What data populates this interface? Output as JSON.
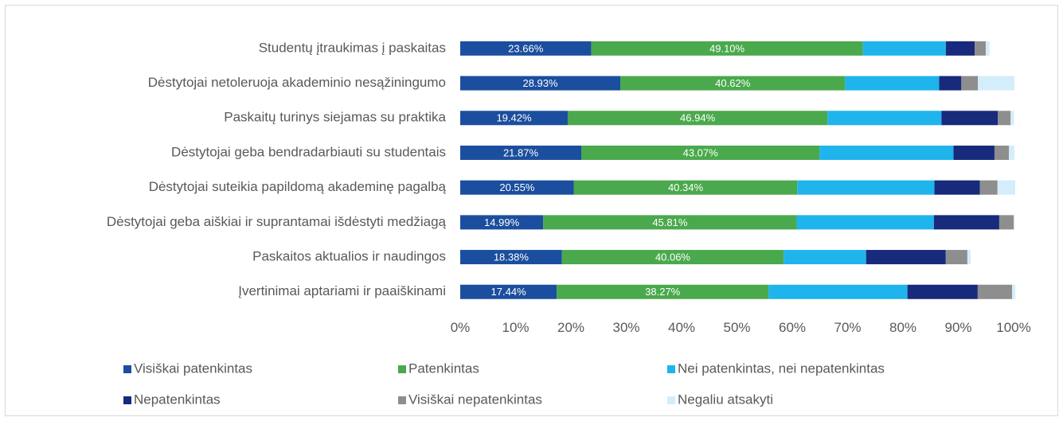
{
  "chart_data": {
    "type": "stacked_barh",
    "categories": [
      "Studentų įtraukimas į paskaitas",
      "Dėstytojai netoleruoja akademinio nesąžiningumo",
      "Paskaitų turinys siejamas su praktika",
      "Dėstytojai geba bendradarbiauti su studentais",
      "Dėstytojai suteikia papildomą akademinę pagalbą",
      "Dėstytojai geba aiškiai ir suprantamai išdėstyti medžiagą",
      "Paskaitos aktualios ir naudingos",
      "Įvertinimai aptariami ir paaiškinami"
    ],
    "series": [
      {
        "name": "Visiškai patenkintas",
        "color": "#1b4e9e",
        "values": [
          23.66,
          28.93,
          19.42,
          21.87,
          20.55,
          14.99,
          18.38,
          17.44
        ],
        "value_labels": [
          "23.66%",
          "28.93%",
          "19.42%",
          "21.87%",
          "20.55%",
          "14.99%",
          "18.38%",
          "17.44%"
        ]
      },
      {
        "name": "Patenkintas",
        "color": "#4aa94c",
        "values": [
          49.1,
          40.62,
          46.94,
          43.07,
          40.34,
          45.81,
          40.06,
          38.27
        ],
        "value_labels": [
          "49.10%",
          "40.62%",
          "46.94%",
          "43.07%",
          "40.34%",
          "45.81%",
          "40.06%",
          "38.27%"
        ]
      },
      {
        "name": "Nei patenkintas, nei nepatenkintas",
        "color": "#1fb4ec",
        "values": [
          15.0,
          17.0,
          20.6,
          24.2,
          24.8,
          24.8,
          14.9,
          25.1
        ]
      },
      {
        "name": "Nepatenkintas",
        "color": "#172a7c",
        "values": [
          5.2,
          4.0,
          10.2,
          7.4,
          8.2,
          11.8,
          14.4,
          12.7
        ]
      },
      {
        "name": "Visiškai nepatenkintas",
        "color": "#8e8e8e",
        "values": [
          2.0,
          3.0,
          2.3,
          2.6,
          3.2,
          2.6,
          3.9,
          6.2
        ]
      },
      {
        "name": "Negaliu atsakyti",
        "color": "#d4edfa",
        "values": [
          0.7,
          6.6,
          0.6,
          1.0,
          3.2,
          0.2,
          0.6,
          0.6
        ]
      }
    ],
    "xlim": [
      0,
      100
    ],
    "xticks": [
      {
        "value": 0,
        "label": "0%"
      },
      {
        "value": 10,
        "label": "10%"
      },
      {
        "value": 20,
        "label": "20%"
      },
      {
        "value": 30,
        "label": "30%"
      },
      {
        "value": 40,
        "label": "40%"
      },
      {
        "value": 50,
        "label": "50%"
      },
      {
        "value": 60,
        "label": "60%"
      },
      {
        "value": 70,
        "label": "70%"
      },
      {
        "value": 80,
        "label": "80%"
      },
      {
        "value": 90,
        "label": "90%"
      },
      {
        "value": 100,
        "label": "100%"
      }
    ],
    "legend": "bottom"
  }
}
